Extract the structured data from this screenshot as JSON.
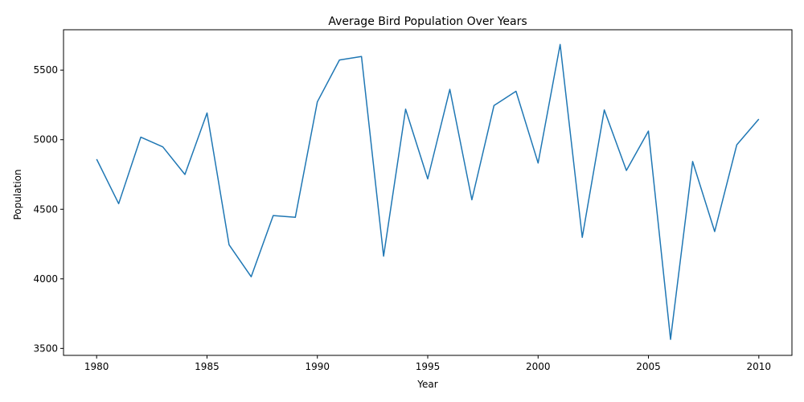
{
  "chart_data": {
    "type": "line",
    "title": "Average Bird Population Over Years",
    "xlabel": "Year",
    "ylabel": "Population",
    "xlim": [
      1978.5,
      2011.5
    ],
    "ylim": [
      3450,
      5790
    ],
    "xticks": [
      1980,
      1985,
      1990,
      1995,
      2000,
      2005,
      2010
    ],
    "yticks": [
      3500,
      4000,
      4500,
      5000,
      5500
    ],
    "grid": false,
    "series": [
      {
        "color": "#1f77b4",
        "x": [
          1980,
          1981,
          1982,
          1983,
          1984,
          1985,
          1986,
          1987,
          1988,
          1989,
          1990,
          1991,
          1992,
          1993,
          1994,
          1995,
          1996,
          1997,
          1998,
          1999,
          2000,
          2001,
          2002,
          2003,
          2004,
          2005,
          2006,
          2007,
          2008,
          2009,
          2010
        ],
        "y": [
          4860,
          4540,
          5018,
          4948,
          4750,
          5192,
          4245,
          4015,
          4455,
          4442,
          5272,
          5573,
          5598,
          4163,
          5219,
          4718,
          5362,
          4568,
          5245,
          5348,
          4832,
          5684,
          4298,
          5214,
          4779,
          5062,
          3565,
          4843,
          4340,
          4963,
          5148
        ]
      }
    ]
  }
}
